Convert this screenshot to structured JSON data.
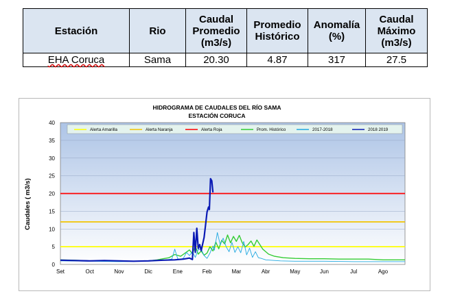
{
  "table": {
    "headers": [
      "Estación",
      "Rio",
      "Caudal Promedio (m3/s)",
      "Promedio Histórico",
      "Anomalía (%)",
      "Caudal Máximo (m3/s)"
    ],
    "row": {
      "station": "EHA Coruca",
      "river": "Sama",
      "avg_flow": "20.30",
      "hist_avg": "4.87",
      "anomaly": "317",
      "max_flow": "27.5"
    }
  },
  "chart_data": {
    "type": "line",
    "title": "HIDROGRAMA DE CAUDALES DEL RÍO SAMA",
    "subtitle": "ESTACIÓN CORUCA",
    "ylabel": "Caudales ( m3/s)",
    "xlabel": "",
    "ylim": [
      0,
      40
    ],
    "yticks": [
      "0",
      "5",
      "10",
      "15",
      "20",
      "25",
      "30",
      "35",
      "40"
    ],
    "categories": [
      "Set",
      "Oct",
      "Nov",
      "Dic",
      "Ene",
      "Feb",
      "Mar",
      "Abr",
      "May",
      "Jun",
      "Jul",
      "Ago"
    ],
    "xlim_months": [
      0,
      11.75
    ],
    "grid": true,
    "legend_position": "top",
    "background_gradient": [
      "#adc4e6",
      "#ffffff"
    ],
    "thresholds": [
      {
        "name": "Alerta Amarilla",
        "value": 5,
        "color": "#ffff00"
      },
      {
        "name": "Alerta Naranja",
        "value": 12,
        "color": "#f2c300"
      },
      {
        "name": "Alerta Roja",
        "value": 20,
        "color": "#ff0000"
      }
    ],
    "series": [
      {
        "name": "Prom. Histórico",
        "color": "#33cc33",
        "points": [
          [
            0,
            1.3
          ],
          [
            0.5,
            1.2
          ],
          [
            1,
            1.0
          ],
          [
            1.5,
            1.0
          ],
          [
            2,
            0.9
          ],
          [
            2.5,
            0.9
          ],
          [
            3,
            1.0
          ],
          [
            3.3,
            1.3
          ],
          [
            3.5,
            1.6
          ],
          [
            3.7,
            1.9
          ],
          [
            3.9,
            2.8
          ],
          [
            4.1,
            2.3
          ],
          [
            4.25,
            3.2
          ],
          [
            4.4,
            4.1
          ],
          [
            4.5,
            3.0
          ],
          [
            4.6,
            5.2
          ],
          [
            4.7,
            2.9
          ],
          [
            4.8,
            3.8
          ],
          [
            4.9,
            2.6
          ],
          [
            5.0,
            3.2
          ],
          [
            5.1,
            5.0
          ],
          [
            5.2,
            3.8
          ],
          [
            5.3,
            6.3
          ],
          [
            5.4,
            4.4
          ],
          [
            5.5,
            6.8
          ],
          [
            5.6,
            5.8
          ],
          [
            5.7,
            8.3
          ],
          [
            5.8,
            6.1
          ],
          [
            5.9,
            7.9
          ],
          [
            6.0,
            6.5
          ],
          [
            6.1,
            8.2
          ],
          [
            6.2,
            6.1
          ],
          [
            6.3,
            4.9
          ],
          [
            6.4,
            5.6
          ],
          [
            6.5,
            6.6
          ],
          [
            6.6,
            5.1
          ],
          [
            6.7,
            6.9
          ],
          [
            6.8,
            5.6
          ],
          [
            6.9,
            4.3
          ],
          [
            7.0,
            3.6
          ],
          [
            7.1,
            2.9
          ],
          [
            7.3,
            2.3
          ],
          [
            7.6,
            1.9
          ],
          [
            8,
            1.7
          ],
          [
            8.5,
            1.6
          ],
          [
            9,
            1.6
          ],
          [
            9.5,
            1.5
          ],
          [
            10,
            1.5
          ],
          [
            10.5,
            1.5
          ],
          [
            11,
            1.3
          ],
          [
            11.5,
            1.3
          ],
          [
            11.75,
            1.3
          ]
        ]
      },
      {
        "name": "2017-2018",
        "color": "#20a8e0",
        "points": [
          [
            0,
            1.0
          ],
          [
            1,
            0.9
          ],
          [
            2,
            0.8
          ],
          [
            3,
            0.9
          ],
          [
            3.5,
            1.2
          ],
          [
            3.8,
            1.5
          ],
          [
            3.9,
            4.3
          ],
          [
            4.0,
            1.6
          ],
          [
            4.1,
            1.4
          ],
          [
            4.2,
            1.8
          ],
          [
            4.3,
            3.4
          ],
          [
            4.4,
            2.5
          ],
          [
            4.5,
            3.6
          ],
          [
            4.6,
            2.0
          ],
          [
            4.7,
            4.2
          ],
          [
            4.8,
            4.3
          ],
          [
            4.9,
            2.5
          ],
          [
            5.0,
            1.7
          ],
          [
            5.1,
            3.2
          ],
          [
            5.2,
            5.2
          ],
          [
            5.25,
            4.0
          ],
          [
            5.35,
            9.0
          ],
          [
            5.45,
            5.6
          ],
          [
            5.55,
            7.4
          ],
          [
            5.65,
            5.0
          ],
          [
            5.75,
            3.6
          ],
          [
            5.85,
            6.2
          ],
          [
            5.95,
            3.4
          ],
          [
            6.05,
            5.0
          ],
          [
            6.15,
            3.3
          ],
          [
            6.25,
            6.5
          ],
          [
            6.35,
            2.7
          ],
          [
            6.45,
            4.6
          ],
          [
            6.55,
            2.0
          ],
          [
            6.65,
            3.6
          ],
          [
            6.75,
            1.9
          ],
          [
            6.85,
            1.7
          ],
          [
            7.0,
            1.3
          ],
          [
            7.5,
            1.0
          ],
          [
            8,
            0.9
          ],
          [
            9,
            0.9
          ],
          [
            10,
            0.8
          ],
          [
            11.75,
            0.8
          ]
        ]
      },
      {
        "name": "2018 2019",
        "color": "#0a1ab4",
        "points": [
          [
            0,
            1.2
          ],
          [
            0.5,
            1.1
          ],
          [
            1,
            1.0
          ],
          [
            1.5,
            1.1
          ],
          [
            2,
            1.0
          ],
          [
            2.5,
            0.9
          ],
          [
            3,
            1.0
          ],
          [
            3.5,
            1.2
          ],
          [
            3.9,
            1.3
          ],
          [
            4.2,
            1.5
          ],
          [
            4.4,
            1.8
          ],
          [
            4.5,
            1.4
          ],
          [
            4.55,
            9.0
          ],
          [
            4.6,
            3.4
          ],
          [
            4.65,
            10.2
          ],
          [
            4.7,
            4.5
          ],
          [
            4.75,
            5.6
          ],
          [
            4.8,
            3.9
          ],
          [
            4.9,
            7.6
          ],
          [
            4.95,
            11.2
          ],
          [
            5.0,
            14.8
          ],
          [
            5.05,
            16.2
          ],
          [
            5.08,
            15.5
          ],
          [
            5.12,
            24.2
          ],
          [
            5.16,
            23.6
          ],
          [
            5.2,
            20.3
          ]
        ]
      }
    ]
  }
}
